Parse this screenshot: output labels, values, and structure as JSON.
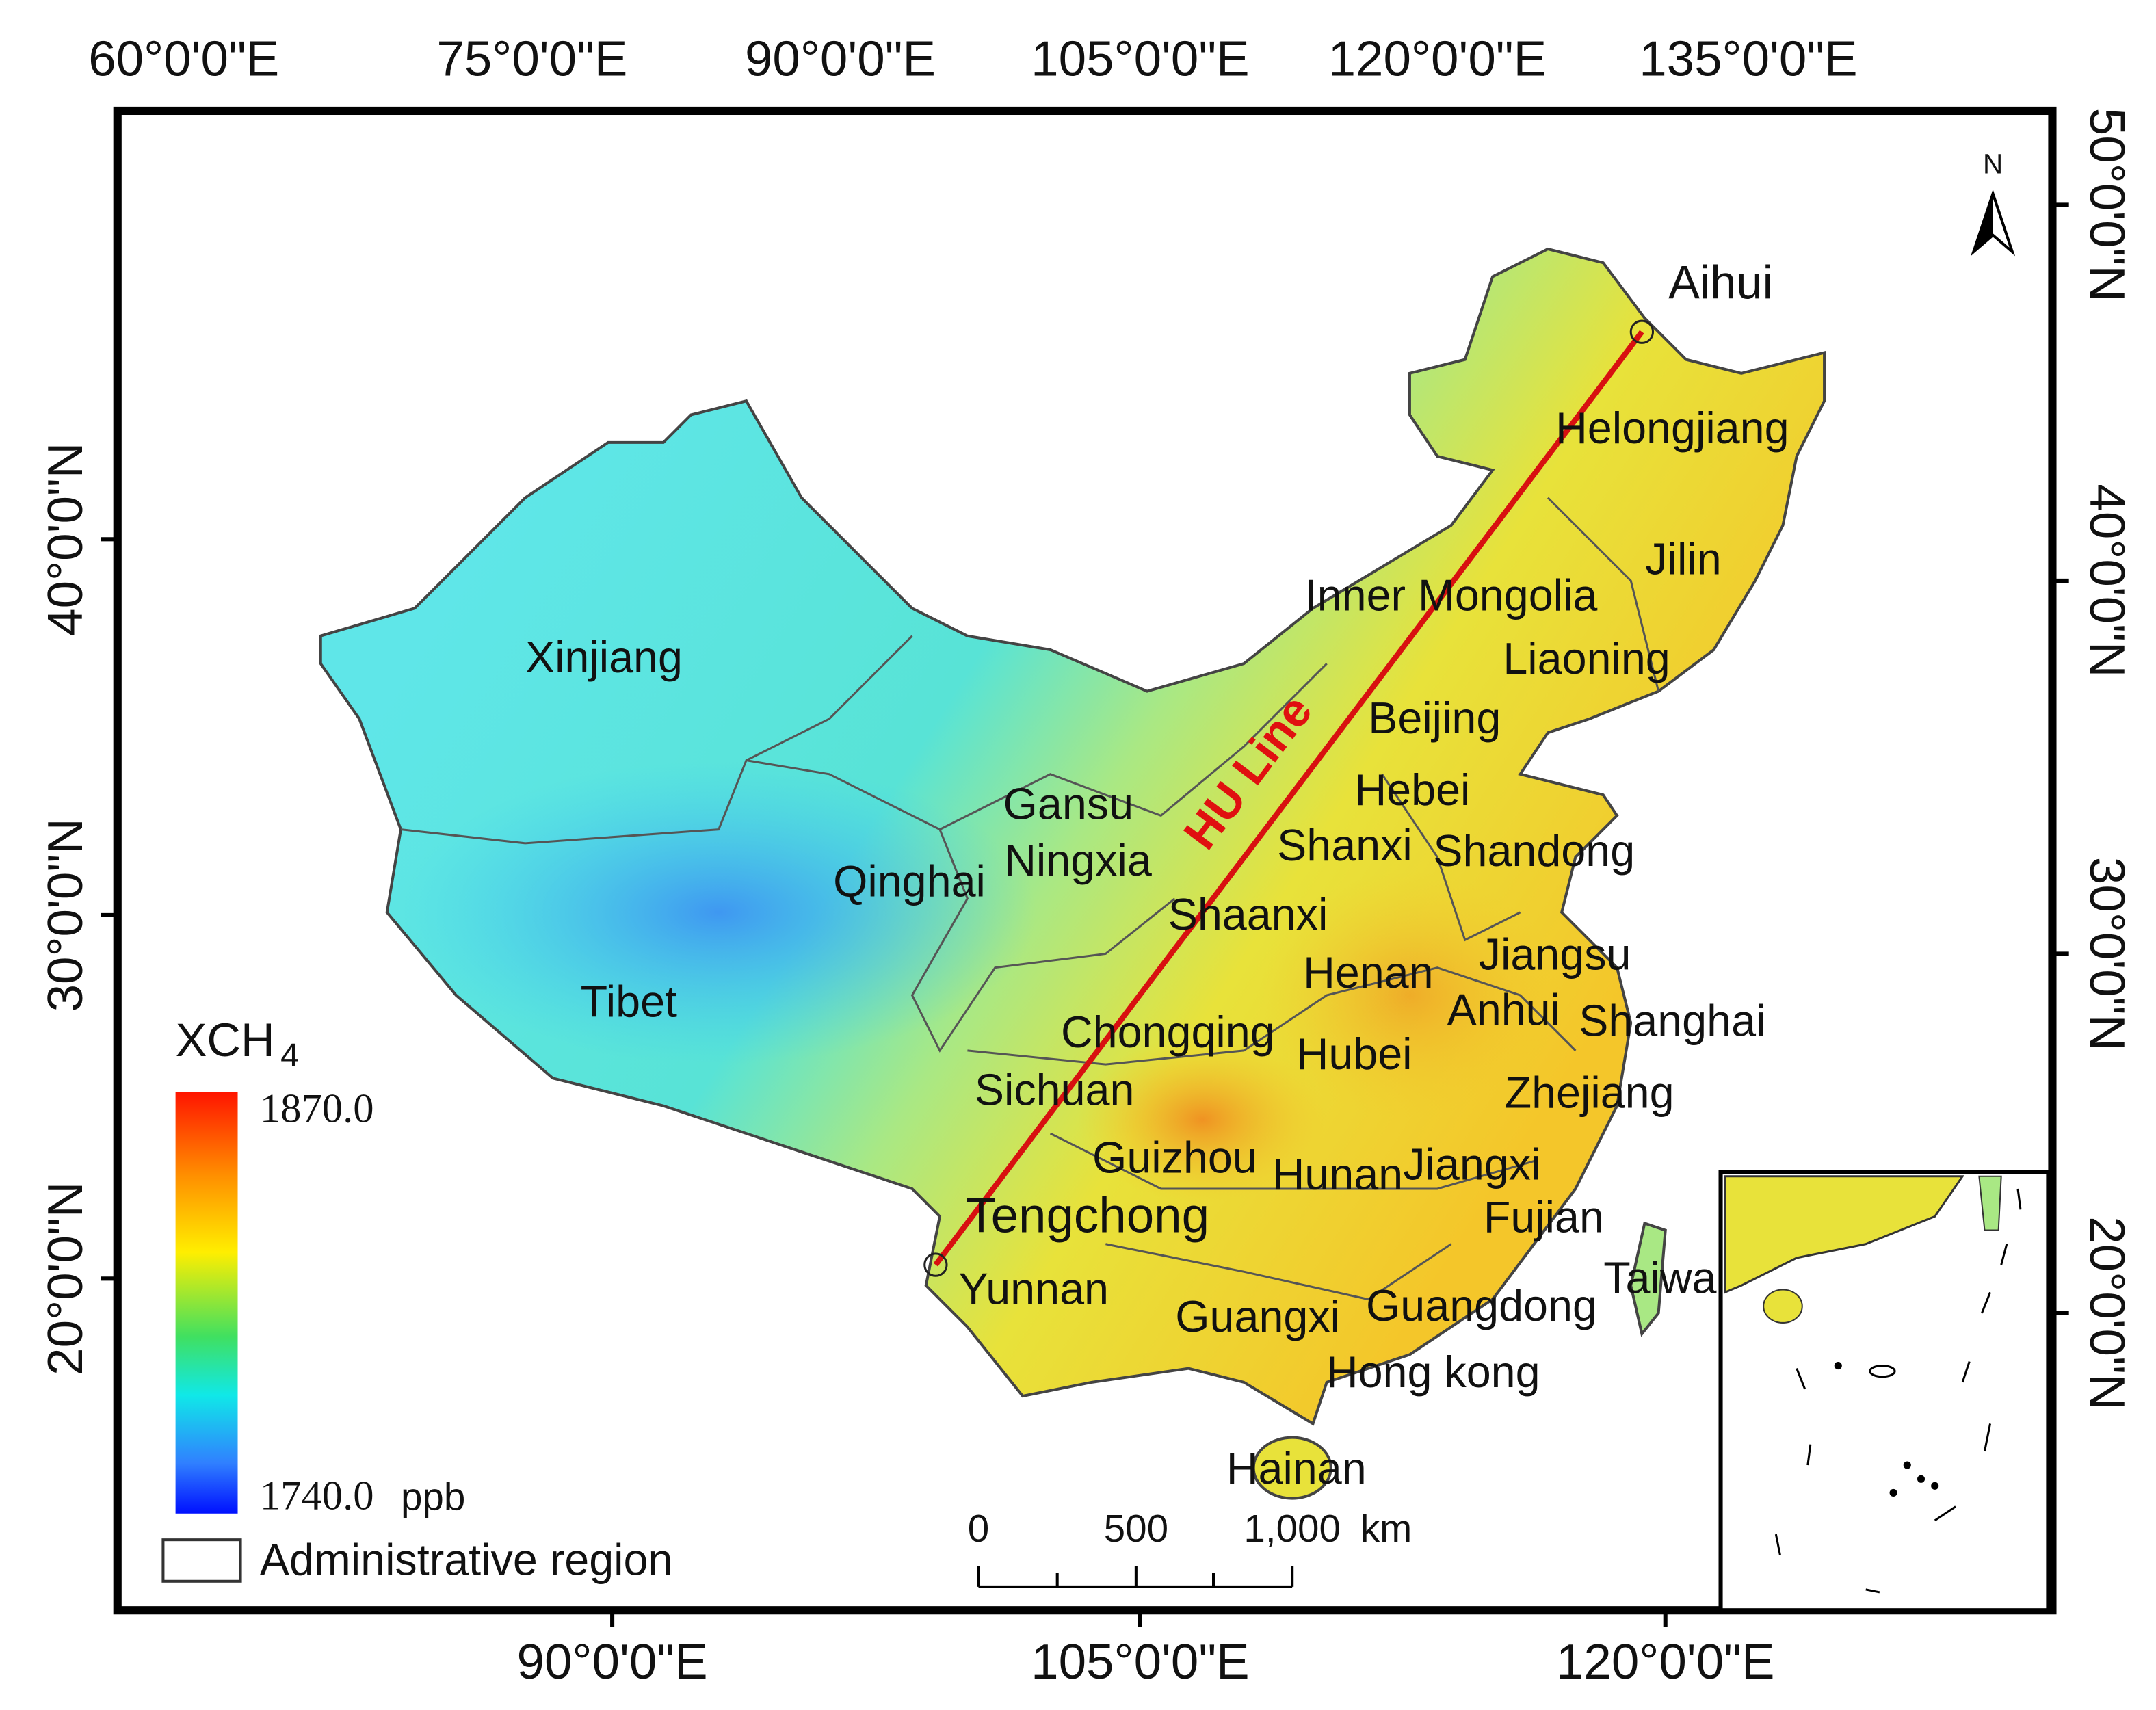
{
  "top_axis_labels": [
    "60°0'0\"E",
    "75°0'0\"E",
    "90°0'0\"E",
    "105°0'0\"E",
    "120°0'0\"E",
    "135°0'0\"E"
  ],
  "bottom_axis_labels": [
    "90°0'0\"E",
    "105°0'0\"E",
    "120°0'0\"E"
  ],
  "left_axis_labels": [
    "40°0'0\"N",
    "30°0'0\"N",
    "20°0'0\"N"
  ],
  "right_axis_labels": [
    "50°0'0\"N",
    "40°0'0\"N",
    "30°0'0\"N",
    "20°0'0\"N"
  ],
  "north_arrow": "N",
  "hu_line": {
    "label": "HU Line",
    "start": "Tengchong",
    "end": "Aihui"
  },
  "provinces": [
    "Xinjiang",
    "Tibet",
    "Qinghai",
    "Gansu",
    "Ningxia",
    "Inner Mongolia",
    "Helongjiang",
    "Jilin",
    "Liaoning",
    "Beijing",
    "Hebei",
    "Shanxi",
    "Shandong",
    "Shaanxi",
    "Henan",
    "Jiangsu",
    "Anhui",
    "Shanghai",
    "Chongqing",
    "Hubei",
    "Sichuan",
    "Zhejiang",
    "Guizhou",
    "Hunan",
    "Jiangxi",
    "Fujian",
    "Yunnan",
    "Guangxi",
    "Guangdong",
    "Taiwan",
    "Hong kong",
    "Hainan"
  ],
  "legend": {
    "title": "XCH",
    "title_subscript": "4",
    "max": "1870.0",
    "min": "1740.0",
    "unit": "ppb",
    "boundary": "Administrative region"
  },
  "scale_bar": {
    "ticks": [
      "0",
      "500",
      "1,000"
    ],
    "unit": "km"
  }
}
